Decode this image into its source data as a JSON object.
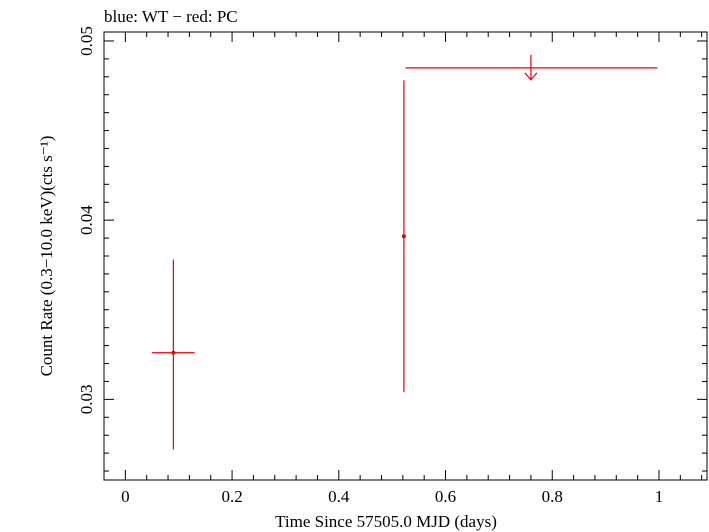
{
  "chart_data": {
    "type": "scatter",
    "title": "blue: WT − red: PC",
    "xlabel": "Time Since 57505.0 MJD (days)",
    "ylabel": "Count Rate (0.3−10.0 keV)(cts s⁻¹)",
    "xlim": [
      -0.04,
      1.09
    ],
    "ylim": [
      0.0255,
      0.0505
    ],
    "x_ticks": [
      0,
      0.2,
      0.4,
      0.6,
      0.8,
      1.0
    ],
    "x_tick_labels": [
      "0",
      "0.2",
      "0.4",
      "0.6",
      "0.8",
      "1"
    ],
    "y_ticks": [
      0.03,
      0.04,
      0.05
    ],
    "y_tick_labels": [
      "0.03",
      "0.04",
      "0.05"
    ],
    "grid": false,
    "series": [
      {
        "mode": "PC",
        "color": "#e8000b",
        "points": [
          {
            "x": 0.09,
            "y": 0.0326,
            "xerr_low": 0.05,
            "xerr_high": 0.13,
            "yerr_low": 0.0272,
            "yerr_high": 0.0378
          },
          {
            "x": 0.522,
            "y": 0.0391,
            "xerr_low": 0.522,
            "xerr_high": 0.522,
            "yerr_low": 0.0304,
            "yerr_high": 0.0478
          }
        ],
        "upper_limits": [
          {
            "x": 0.76,
            "y": 0.0485,
            "x_low": 0.525,
            "x_high": 0.997
          }
        ]
      }
    ]
  }
}
